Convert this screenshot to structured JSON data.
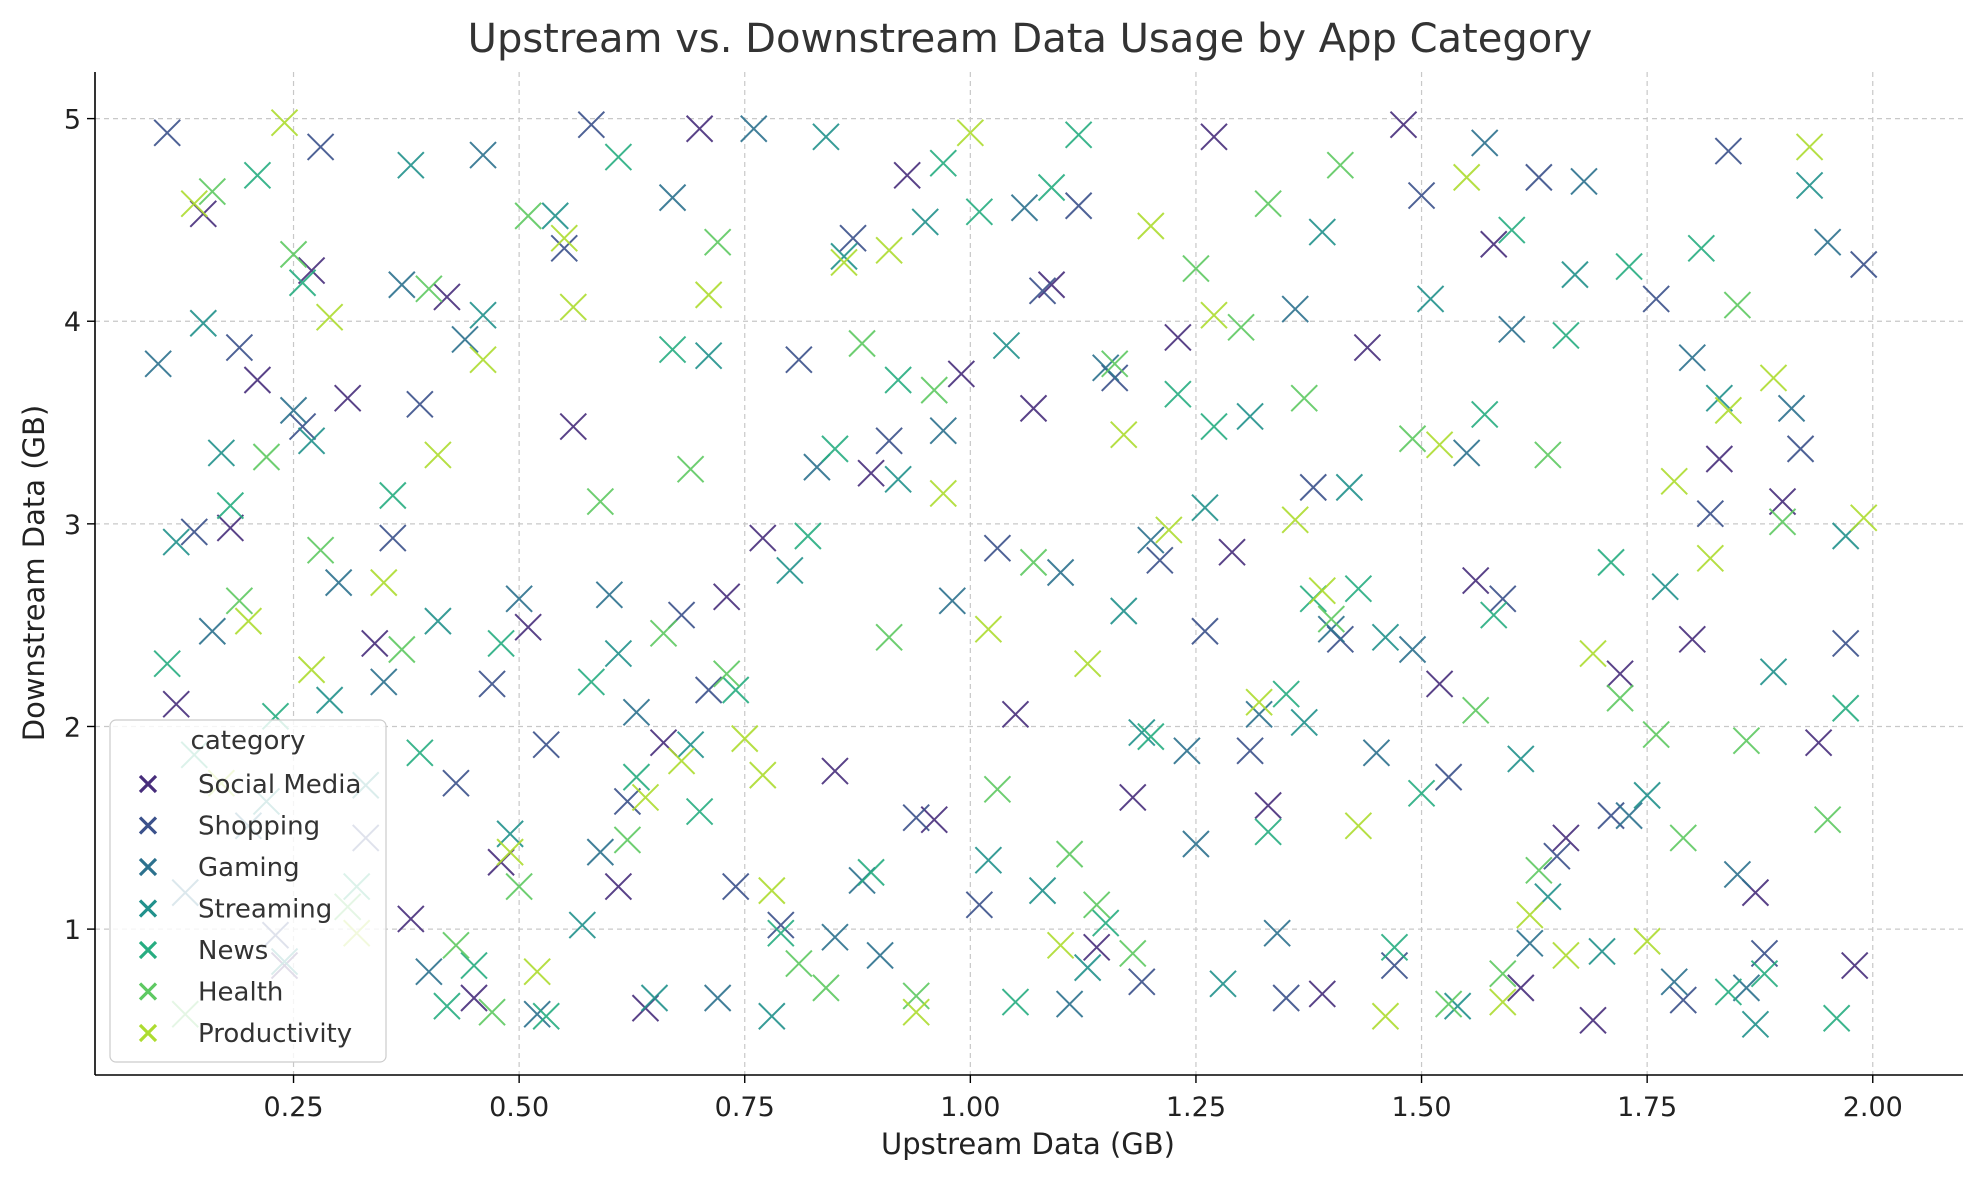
{
  "chart_data": {
    "type": "scatter",
    "title": "Upstream vs. Downstream Data Usage by App Category",
    "xlabel": "Upstream Data (GB)",
    "ylabel": "Downstream Data (GB)",
    "xlim": [
      0.03,
      2.1
    ],
    "ylim": [
      0.28,
      5.23
    ],
    "xticks": [
      "0.25",
      "0.50",
      "0.75",
      "1.00",
      "1.25",
      "1.50",
      "1.75",
      "2.00"
    ],
    "yticks": [
      "1",
      "2",
      "3",
      "4",
      "5"
    ],
    "grid": true,
    "marker": "x",
    "legend": {
      "title": "category",
      "placement": "lower-left"
    },
    "series": [
      {
        "name": "Social Media",
        "color": "#472d7b",
        "x": [
          0.12,
          0.38,
          0.21,
          0.93,
          1.27,
          1.8,
          1.61,
          0.7,
          0.48,
          1.05,
          1.52,
          0.27,
          1.9,
          0.64,
          1.18,
          0.31,
          0.85,
          1.44,
          1.98,
          0.56,
          1.66,
          0.15,
          1.33,
          0.77,
          1.09,
          0.42,
          1.72,
          0.96,
          1.58,
          0.24,
          1.83,
          1.23,
          0.61,
          1.39,
          0.18,
          0.89,
          1.94,
          0.51,
          1.14,
          0.73,
          1.48,
          0.34,
          1.69,
          0.99,
          1.29,
          0.66,
          1.87,
          0.45,
          1.07,
          1.56
        ],
        "y": [
          2.11,
          1.05,
          3.71,
          4.72,
          4.91,
          2.43,
          0.71,
          4.95,
          1.33,
          2.06,
          2.21,
          4.25,
          3.11,
          0.61,
          1.65,
          3.62,
          1.78,
          3.87,
          0.82,
          3.48,
          1.45,
          4.53,
          1.61,
          2.93,
          4.18,
          4.12,
          2.26,
          1.54,
          4.38,
          0.82,
          3.32,
          3.92,
          1.21,
          0.68,
          2.98,
          3.25,
          1.92,
          2.49,
          0.91,
          2.64,
          4.97,
          2.41,
          0.55,
          3.74,
          2.86,
          1.92,
          1.18,
          0.66,
          3.57,
          2.72
        ]
      },
      {
        "name": "Shopping",
        "color": "#3b518b",
        "x": [
          0.11,
          0.28,
          0.55,
          0.81,
          1.12,
          1.41,
          1.76,
          1.97,
          0.36,
          0.62,
          0.94,
          1.21,
          1.53,
          1.84,
          0.19,
          0.47,
          0.74,
          1.03,
          1.35,
          1.63,
          1.92,
          0.26,
          0.58,
          0.87,
          1.16,
          1.47,
          1.79,
          0.33,
          0.68,
          1.01,
          1.31,
          1.59,
          1.88,
          0.14,
          0.43,
          0.79,
          1.08,
          1.38,
          1.71,
          1.99,
          0.23,
          0.53,
          0.91,
          1.19,
          1.5,
          1.82,
          0.39,
          0.71,
          1.26,
          1.65
        ],
        "y": [
          4.93,
          4.86,
          4.36,
          3.81,
          4.57,
          2.43,
          4.11,
          2.41,
          2.93,
          1.63,
          1.55,
          2.82,
          1.75,
          4.84,
          3.87,
          2.21,
          1.21,
          2.88,
          0.66,
          4.71,
          3.37,
          3.48,
          4.97,
          4.41,
          3.72,
          0.82,
          0.65,
          1.45,
          2.55,
          1.12,
          1.88,
          2.63,
          0.88,
          2.96,
          1.72,
          1.02,
          4.15,
          3.18,
          1.56,
          4.28,
          0.97,
          1.91,
          3.41,
          0.74,
          4.62,
          3.05,
          3.59,
          2.18,
          2.47,
          1.36
        ]
      },
      {
        "name": "Gaming",
        "color": "#2c718e",
        "x": [
          0.1,
          0.3,
          0.52,
          0.76,
          0.98,
          1.24,
          1.49,
          1.73,
          1.95,
          0.2,
          0.44,
          0.67,
          0.9,
          1.15,
          1.4,
          1.62,
          1.86,
          0.35,
          0.59,
          0.83,
          1.06,
          1.32,
          1.57,
          1.8,
          0.16,
          0.4,
          0.63,
          0.88,
          1.11,
          1.36,
          1.6,
          1.85,
          0.25,
          0.5,
          0.72,
          0.97,
          1.2,
          1.45,
          1.68,
          1.91,
          0.13,
          0.37,
          0.6,
          0.85,
          1.1,
          1.34,
          1.55,
          1.78,
          0.46,
          1.25
        ],
        "y": [
          3.79,
          2.71,
          0.58,
          4.95,
          2.62,
          1.88,
          2.38,
          1.56,
          4.39,
          1.51,
          3.91,
          4.61,
          0.87,
          3.77,
          2.48,
          0.93,
          0.71,
          2.22,
          1.38,
          3.28,
          4.56,
          2.06,
          4.88,
          3.82,
          2.47,
          0.79,
          2.07,
          1.24,
          0.63,
          4.06,
          3.96,
          1.27,
          3.56,
          2.63,
          0.66,
          3.46,
          2.92,
          1.87,
          4.69,
          3.57,
          1.18,
          4.18,
          2.65,
          0.96,
          2.76,
          0.98,
          3.35,
          0.74,
          4.82,
          1.42
        ]
      },
      {
        "name": "Streaming",
        "color": "#21918c",
        "x": [
          0.12,
          0.27,
          0.49,
          0.71,
          0.95,
          1.19,
          1.42,
          1.67,
          1.89,
          0.22,
          0.41,
          0.65,
          0.86,
          1.13,
          1.37,
          1.61,
          1.83,
          0.17,
          0.38,
          0.57,
          0.8,
          1.04,
          1.28,
          1.51,
          1.75,
          1.97,
          0.29,
          0.54,
          0.78,
          1.02,
          1.26,
          1.46,
          1.7,
          1.93,
          0.15,
          0.33,
          0.61,
          0.84,
          1.08,
          1.31,
          1.54,
          1.77,
          0.24,
          0.46,
          0.69,
          0.92,
          1.17,
          1.39,
          1.64,
          1.87
        ],
        "y": [
          2.91,
          3.41,
          1.47,
          3.83,
          4.49,
          1.97,
          3.18,
          4.23,
          2.27,
          1.63,
          2.52,
          0.66,
          4.32,
          0.81,
          2.02,
          1.84,
          3.62,
          3.35,
          4.77,
          1.02,
          2.77,
          3.88,
          0.73,
          4.11,
          1.66,
          2.94,
          2.13,
          4.52,
          0.57,
          1.34,
          3.08,
          2.44,
          0.89,
          4.67,
          3.99,
          1.71,
          2.36,
          4.91,
          1.19,
          3.53,
          0.62,
          2.69,
          0.84,
          4.03,
          1.91,
          3.22,
          2.57,
          4.44,
          1.16,
          0.53
        ]
      },
      {
        "name": "News",
        "color": "#27ad81",
        "x": [
          0.11,
          0.32,
          0.53,
          0.74,
          0.97,
          1.2,
          1.43,
          1.66,
          1.88,
          0.21,
          0.42,
          0.63,
          0.85,
          1.09,
          1.33,
          1.58,
          1.81,
          0.14,
          0.36,
          0.58,
          0.79,
          1.01,
          1.23,
          1.47,
          1.71,
          1.96,
          0.26,
          0.48,
          0.7,
          0.92,
          1.15,
          1.38,
          1.6,
          1.84,
          0.18,
          0.39,
          0.61,
          0.82,
          1.05,
          1.27,
          1.5,
          1.73,
          0.23,
          0.45,
          0.67,
          0.89,
          1.12,
          1.35,
          1.57,
          1.97
        ],
        "y": [
          2.31,
          1.21,
          0.57,
          2.18,
          4.78,
          1.95,
          2.68,
          3.93,
          0.78,
          4.72,
          0.62,
          1.75,
          3.37,
          4.66,
          1.48,
          2.55,
          4.36,
          1.86,
          3.14,
          2.22,
          0.98,
          4.54,
          3.64,
          0.91,
          2.81,
          0.56,
          4.19,
          2.41,
          1.58,
          3.71,
          1.03,
          2.63,
          4.45,
          0.69,
          3.09,
          1.87,
          4.81,
          2.94,
          0.64,
          3.48,
          1.67,
          4.27,
          2.05,
          0.82,
          3.86,
          1.28,
          4.92,
          2.16,
          3.54,
          2.09
        ]
      },
      {
        "name": "Health",
        "color": "#5ec962",
        "x": [
          0.13,
          0.31,
          0.51,
          0.73,
          0.96,
          1.18,
          1.41,
          1.64,
          1.86,
          0.19,
          0.4,
          0.62,
          0.84,
          1.07,
          1.3,
          1.53,
          1.76,
          0.16,
          0.37,
          0.59,
          0.81,
          1.03,
          1.25,
          1.49,
          1.72,
          1.95,
          0.28,
          0.5,
          0.72,
          0.94,
          1.16,
          1.4,
          1.63,
          1.85,
          0.22,
          0.43,
          0.66,
          0.88,
          1.11,
          1.33,
          1.56,
          1.79,
          0.25,
          0.47,
          0.69,
          0.91,
          1.14,
          1.37,
          1.59,
          1.9
        ],
        "y": [
          0.58,
          1.11,
          4.52,
          2.26,
          3.66,
          0.88,
          4.77,
          3.34,
          1.93,
          2.62,
          4.16,
          1.44,
          0.71,
          2.81,
          3.97,
          0.63,
          1.96,
          4.64,
          2.38,
          3.11,
          0.83,
          1.69,
          4.26,
          3.42,
          2.14,
          1.54,
          2.87,
          1.21,
          4.39,
          0.67,
          3.79,
          2.53,
          1.29,
          4.08,
          3.33,
          0.92,
          2.46,
          3.89,
          1.37,
          4.58,
          2.08,
          1.45,
          4.33,
          0.59,
          3.27,
          2.44,
          1.12,
          3.62,
          0.78,
          3.01
        ]
      },
      {
        "name": "Productivity",
        "color": "#addc30",
        "x": [
          0.14,
          0.24,
          0.46,
          0.68,
          0.91,
          1.13,
          1.36,
          1.59,
          1.82,
          0.17,
          0.35,
          0.56,
          0.78,
          1.0,
          1.22,
          1.46,
          1.69,
          1.93,
          0.29,
          0.52,
          0.75,
          0.97,
          1.2,
          1.43,
          1.66,
          1.89,
          0.2,
          0.41,
          0.64,
          0.86,
          1.1,
          1.32,
          1.55,
          1.78,
          1.99,
          0.27,
          0.49,
          0.71,
          0.94,
          1.17,
          1.39,
          1.62,
          1.84,
          0.32,
          0.55,
          0.77,
          1.02,
          1.27,
          1.52,
          1.75
        ],
        "y": [
          4.58,
          4.98,
          3.81,
          1.83,
          4.35,
          2.31,
          3.02,
          0.64,
          2.83,
          1.72,
          2.71,
          4.07,
          1.19,
          4.93,
          2.97,
          0.57,
          2.36,
          4.86,
          4.02,
          0.79,
          1.94,
          3.15,
          4.47,
          1.51,
          0.87,
          3.72,
          2.52,
          3.34,
          1.65,
          4.29,
          0.92,
          2.12,
          4.71,
          3.21,
          3.03,
          2.28,
          1.38,
          4.13,
          0.59,
          3.44,
          2.67,
          1.07,
          3.56,
          0.98,
          4.41,
          1.76,
          2.48,
          4.03,
          3.39,
          0.94
        ]
      }
    ]
  }
}
